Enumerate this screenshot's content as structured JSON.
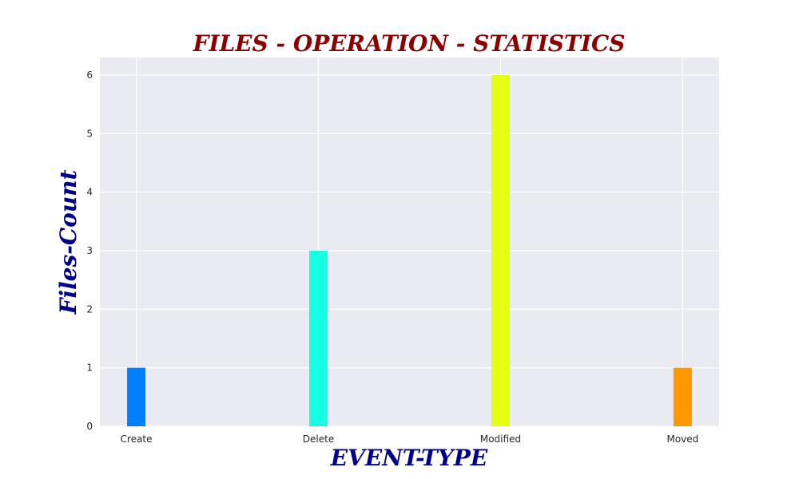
{
  "chart_data": {
    "type": "bar",
    "title": "FILES - OPERATION - STATISTICS",
    "xlabel": "EVENT-TYPE",
    "ylabel": "Files-Count",
    "categories": [
      "Create",
      "Delete",
      "Modified",
      "Moved"
    ],
    "values": [
      1,
      3,
      6,
      1
    ],
    "bar_colors": [
      "#0080ff",
      "#16ffe1",
      "#e4ff12",
      "#ff9800"
    ],
    "ylim": [
      0,
      6.3
    ],
    "yticks": [
      0,
      1,
      2,
      3,
      4,
      5,
      6
    ],
    "grid": true,
    "legend": "none",
    "colors": {
      "title": "#8b0000",
      "axis_label": "#00008b",
      "plot_background": "#eaeaf2",
      "grid": "#ffffff"
    }
  }
}
